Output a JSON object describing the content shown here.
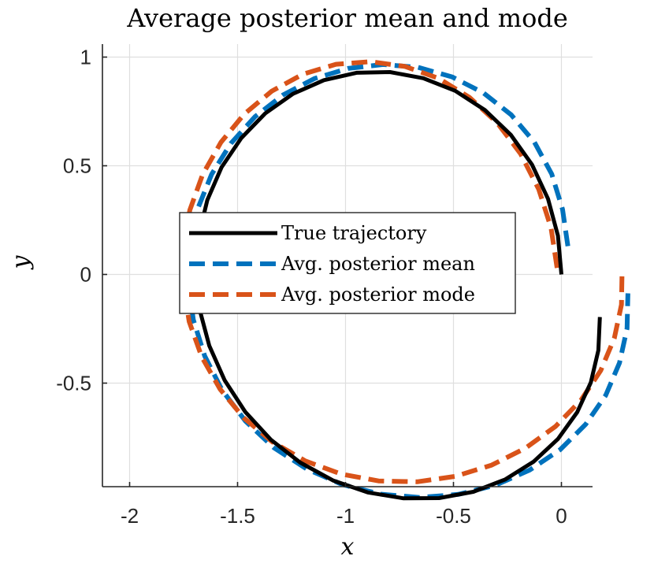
{
  "chart_data": {
    "type": "line",
    "title": "Average posterior mean and mode",
    "xlabel": "x",
    "ylabel": "y",
    "xlim": [
      -2.13,
      0.14
    ],
    "ylim": [
      -0.98,
      1.05
    ],
    "grid": true,
    "legend_position": "center",
    "x_ticks": [
      -2,
      -1.5,
      -1,
      -0.5,
      0
    ],
    "x_tick_labels": [
      "-2",
      "-1.5",
      "-1",
      "-0.5",
      "0"
    ],
    "y_ticks": [
      -0.5,
      0,
      0.5,
      1
    ],
    "y_tick_labels": [
      "-0.5",
      "0",
      "0.5",
      "1"
    ],
    "series": [
      {
        "name": "True trajectory",
        "color": "#000000",
        "style": "solid",
        "x": [
          0,
          -0.016,
          -0.062,
          -0.136,
          -0.235,
          -0.355,
          -0.492,
          -0.64,
          -0.794,
          -0.949,
          -1.1,
          -1.243,
          -1.372,
          -1.483,
          -1.574,
          -1.64,
          -1.68,
          -1.692,
          -1.676,
          -1.631,
          -1.56,
          -1.464,
          -1.346,
          -1.209,
          -1.058,
          -0.897,
          -0.731,
          -0.567,
          -0.408,
          -0.26,
          -0.128,
          -0.016,
          0.073,
          0.136,
          0.171,
          0.178
        ],
        "y": [
          0,
          0.178,
          0.348,
          0.505,
          0.643,
          0.757,
          0.845,
          0.903,
          0.931,
          0.928,
          0.894,
          0.831,
          0.741,
          0.627,
          0.493,
          0.342,
          0.179,
          0.01,
          -0.161,
          -0.328,
          -0.487,
          -0.633,
          -0.76,
          -0.866,
          -0.948,
          -1.003,
          -1.03,
          -1.029,
          -1.0,
          -0.943,
          -0.861,
          -0.757,
          -0.634,
          -0.497,
          -0.349,
          -0.196
        ]
      },
      {
        "name": "Avg. posterior mean",
        "color": "#0072bd",
        "style": "dashed",
        "x": [
          0.03,
          0.005,
          -0.045,
          -0.125,
          -0.232,
          -0.361,
          -0.507,
          -0.664,
          -0.826,
          -0.988,
          -1.144,
          -1.289,
          -1.419,
          -1.531,
          -1.62,
          -1.684,
          -1.72,
          -1.728,
          -1.705,
          -1.652,
          -1.571,
          -1.463,
          -1.332,
          -1.18,
          -1.014,
          -0.838,
          -0.657,
          -0.478,
          -0.306,
          -0.147,
          -0.006,
          0.112,
          0.205,
          0.269,
          0.304,
          0.308
        ],
        "y": [
          0.13,
          0.3,
          0.462,
          0.608,
          0.734,
          0.835,
          0.909,
          0.953,
          0.966,
          0.948,
          0.901,
          0.826,
          0.726,
          0.603,
          0.461,
          0.304,
          0.137,
          -0.035,
          -0.208,
          -0.376,
          -0.533,
          -0.675,
          -0.797,
          -0.895,
          -0.967,
          -1.011,
          -1.026,
          -1.012,
          -0.97,
          -0.9,
          -0.806,
          -0.69,
          -0.556,
          -0.407,
          -0.249,
          -0.087
        ]
      },
      {
        "name": "Avg. posterior mode",
        "color": "#d95319",
        "style": "dashed",
        "x": [
          -0.02,
          -0.048,
          -0.105,
          -0.189,
          -0.297,
          -0.425,
          -0.569,
          -0.724,
          -0.884,
          -1.044,
          -1.198,
          -1.341,
          -1.469,
          -1.577,
          -1.662,
          -1.721,
          -1.751,
          -1.752,
          -1.724,
          -1.666,
          -1.581,
          -1.471,
          -1.338,
          -1.186,
          -1.021,
          -0.847,
          -0.668,
          -0.492,
          -0.323,
          -0.166,
          -0.027,
          0.091,
          0.182,
          0.245,
          0.278,
          0.281
        ],
        "y": [
          0.03,
          0.215,
          0.392,
          0.555,
          0.697,
          0.814,
          0.902,
          0.957,
          0.979,
          0.967,
          0.921,
          0.844,
          0.738,
          0.608,
          0.459,
          0.296,
          0.126,
          -0.047,
          -0.217,
          -0.379,
          -0.528,
          -0.66,
          -0.771,
          -0.858,
          -0.918,
          -0.95,
          -0.954,
          -0.929,
          -0.877,
          -0.799,
          -0.699,
          -0.578,
          -0.442,
          -0.294,
          -0.139,
          0.019
        ]
      }
    ]
  }
}
